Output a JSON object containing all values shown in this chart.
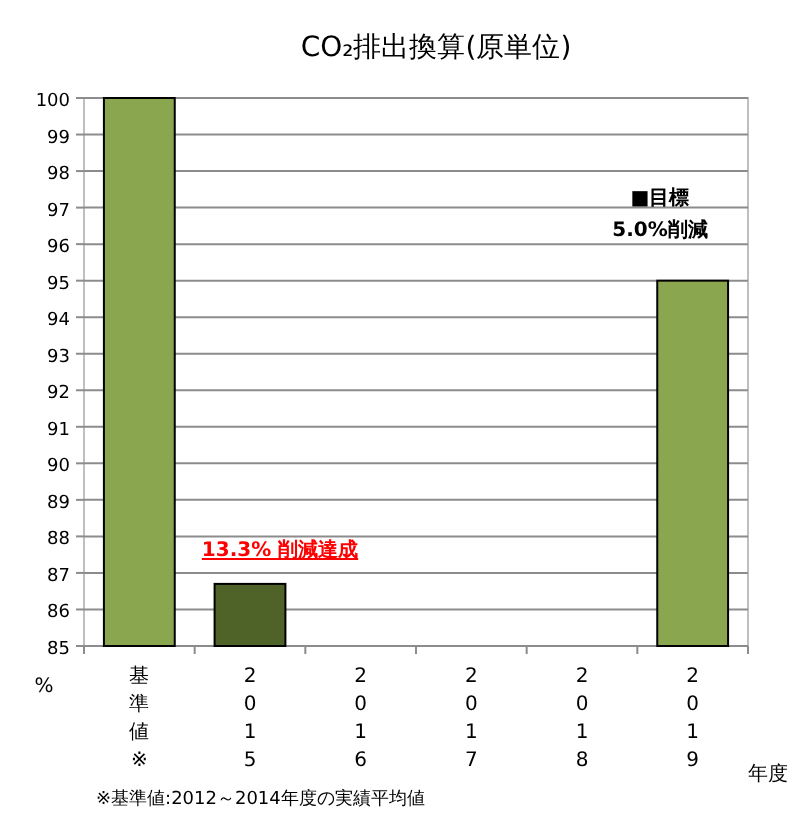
{
  "chart_data": {
    "type": "bar",
    "title": "CO₂排出換算(原単位)",
    "xlabel": "年度",
    "ylabel": "%",
    "categories": [
      "基準値※",
      "2015",
      "2016",
      "2017",
      "2018",
      "2019"
    ],
    "values": [
      100,
      86.7,
      null,
      null,
      null,
      95
    ],
    "colors": [
      "#8aa64e",
      "#4f6228",
      null,
      null,
      null,
      "#8aa64e"
    ],
    "ylim": [
      85,
      100
    ],
    "yticks": [
      85,
      86,
      87,
      88,
      89,
      90,
      91,
      92,
      93,
      94,
      95,
      96,
      97,
      98,
      99,
      100
    ],
    "grid": "y",
    "annotations": [
      "13.3% 削減達成",
      "■目標\n5.0%削減",
      "※基準値:2012～2014年度の実績平均値"
    ]
  }
}
